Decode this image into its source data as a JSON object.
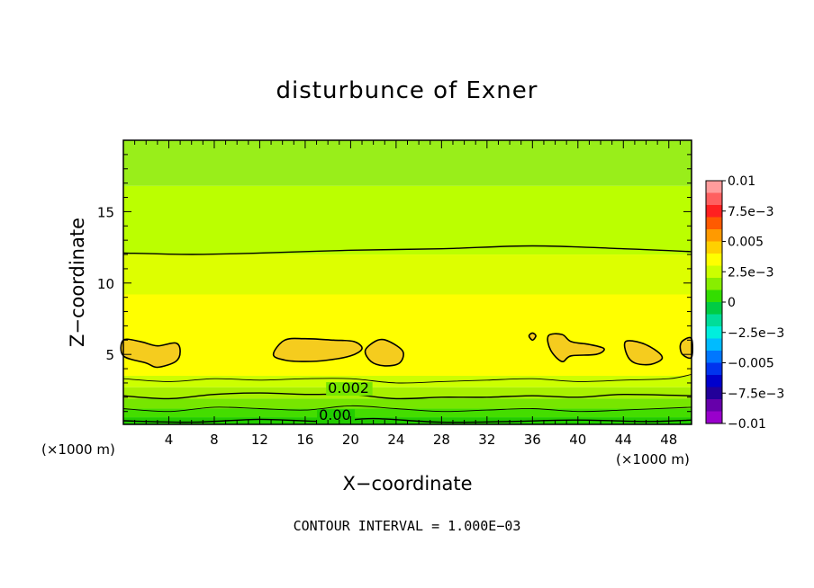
{
  "chart_data": {
    "type": "heatmap",
    "title": "disturbunce of Exner",
    "xlabel": "X−coordinate",
    "ylabel": "Z−coordinate",
    "x_unit": "(×1000 m)",
    "y_unit": "(×1000 m)",
    "xlim": [
      0,
      50
    ],
    "ylim": [
      0.1,
      20
    ],
    "x_ticks": [
      4,
      8,
      12,
      16,
      20,
      24,
      28,
      32,
      36,
      40,
      44,
      48
    ],
    "y_ticks": [
      5,
      10,
      15
    ],
    "footer": "CONTOUR INTERVAL = 1.000E−03",
    "contour_interval": 0.001,
    "bands": [
      {
        "z_top": 20.0,
        "z_bottom": 16.8,
        "value": 0.0018,
        "color": "#99ee1a"
      },
      {
        "z_top": 16.8,
        "z_bottom": 12.0,
        "value": 0.0025,
        "color": "#bbff00"
      },
      {
        "z_top": 12.0,
        "z_bottom": 9.2,
        "value": 0.0032,
        "color": "#ddff00"
      },
      {
        "z_top": 9.2,
        "z_bottom": 3.5,
        "value": 0.0038,
        "color": "#ffff00"
      },
      {
        "z_top": 3.5,
        "z_bottom": 2.7,
        "value": 0.0025,
        "color": "#ccff00"
      },
      {
        "z_top": 2.7,
        "z_bottom": 1.9,
        "value": 0.0021,
        "color": "#a8f000"
      },
      {
        "z_top": 1.9,
        "z_bottom": 1.2,
        "value": 0.0015,
        "color": "#77e600"
      },
      {
        "z_top": 1.2,
        "z_bottom": 0.6,
        "value": 0.0008,
        "color": "#44dd00"
      },
      {
        "z_top": 0.6,
        "z_bottom": 0.1,
        "value": 0.0002,
        "color": "#22cc00"
      }
    ],
    "contours": [
      {
        "value": 0.004,
        "points": [
          [
            0,
            12.1
          ],
          [
            6,
            12.0
          ],
          [
            12,
            12.1
          ],
          [
            20,
            12.3
          ],
          [
            28,
            12.4
          ],
          [
            36,
            12.6
          ],
          [
            44,
            12.4
          ],
          [
            50,
            12.2
          ]
        ]
      },
      {
        "value": 0.003,
        "points": [
          [
            0,
            3.3
          ],
          [
            4,
            3.1
          ],
          [
            8,
            3.3
          ],
          [
            12,
            3.2
          ],
          [
            16,
            3.3
          ],
          [
            20,
            3.3
          ],
          [
            24,
            3.0
          ],
          [
            28,
            3.1
          ],
          [
            32,
            3.2
          ],
          [
            36,
            3.3
          ],
          [
            40,
            3.1
          ],
          [
            44,
            3.2
          ],
          [
            48,
            3.3
          ],
          [
            50,
            3.6
          ]
        ]
      },
      {
        "value": 0.002,
        "points": [
          [
            0,
            2.1
          ],
          [
            4,
            1.9
          ],
          [
            8,
            2.2
          ],
          [
            12,
            2.3
          ],
          [
            16,
            2.2
          ],
          [
            20,
            2.2
          ],
          [
            24,
            1.9
          ],
          [
            28,
            2.0
          ],
          [
            32,
            2.0
          ],
          [
            36,
            2.1
          ],
          [
            40,
            2.0
          ],
          [
            44,
            2.2
          ],
          [
            50,
            2.1
          ]
        ],
        "label": "0.002",
        "label_at": [
          18,
          2.3
        ]
      },
      {
        "value": 0.001,
        "points": [
          [
            0,
            1.2
          ],
          [
            4,
            1.0
          ],
          [
            8,
            1.3
          ],
          [
            12,
            1.2
          ],
          [
            16,
            1.1
          ],
          [
            20,
            1.4
          ],
          [
            24,
            1.2
          ],
          [
            28,
            1.0
          ],
          [
            32,
            1.1
          ],
          [
            36,
            1.2
          ],
          [
            40,
            1.0
          ],
          [
            44,
            1.1
          ],
          [
            50,
            1.3
          ]
        ]
      },
      {
        "value": 0.0,
        "points": [
          [
            0,
            0.35
          ],
          [
            6,
            0.25
          ],
          [
            12,
            0.45
          ],
          [
            18,
            0.3
          ],
          [
            22,
            0.5
          ],
          [
            28,
            0.25
          ],
          [
            34,
            0.3
          ],
          [
            40,
            0.4
          ],
          [
            46,
            0.3
          ],
          [
            50,
            0.4
          ]
        ],
        "label": "0.00",
        "label_at": [
          17.2,
          0.4
        ]
      }
    ],
    "maxima_blobs": [
      {
        "value": 0.005,
        "points": [
          [
            0,
            6.0
          ],
          [
            1.5,
            5.9
          ],
          [
            3,
            5.6
          ],
          [
            4.6,
            5.8
          ],
          [
            5,
            5.2
          ],
          [
            4.6,
            4.5
          ],
          [
            3,
            4.1
          ],
          [
            2,
            4.4
          ],
          [
            0,
            4.9
          ]
        ]
      },
      {
        "value": 0.005,
        "points": [
          [
            13.2,
            5.0
          ],
          [
            14.2,
            6.0
          ],
          [
            16,
            6.1
          ],
          [
            18.5,
            6.0
          ],
          [
            20.3,
            5.9
          ],
          [
            21,
            5.4
          ],
          [
            20,
            4.9
          ],
          [
            18,
            4.6
          ],
          [
            16,
            4.5
          ],
          [
            14.2,
            4.6
          ]
        ]
      },
      {
        "value": 0.005,
        "points": [
          [
            21.3,
            5.3
          ],
          [
            22.4,
            6.0
          ],
          [
            23.4,
            5.9
          ],
          [
            24.6,
            5.2
          ],
          [
            24.3,
            4.4
          ],
          [
            23,
            4.2
          ],
          [
            21.8,
            4.5
          ]
        ]
      },
      {
        "value": 0.005,
        "points": [
          [
            37.4,
            6.3
          ],
          [
            38.6,
            6.4
          ],
          [
            39.4,
            5.9
          ],
          [
            41,
            5.7
          ],
          [
            42.3,
            5.4
          ],
          [
            41.6,
            5.0
          ],
          [
            39.4,
            4.9
          ],
          [
            38.6,
            4.5
          ],
          [
            37.6,
            5.3
          ]
        ]
      },
      {
        "value": 0.005,
        "points": [
          [
            35.7,
            6.3
          ],
          [
            36,
            6.5
          ],
          [
            36.3,
            6.3
          ],
          [
            36,
            6.0
          ]
        ]
      },
      {
        "value": 0.005,
        "points": [
          [
            44.2,
            5.9
          ],
          [
            45.6,
            5.8
          ],
          [
            47,
            5.2
          ],
          [
            47.4,
            4.7
          ],
          [
            46.4,
            4.3
          ],
          [
            45,
            4.4
          ],
          [
            44.3,
            5.0
          ]
        ]
      },
      {
        "value": 0.005,
        "points": [
          [
            49.3,
            6.0
          ],
          [
            50,
            6.1
          ],
          [
            50,
            4.8
          ],
          [
            49.2,
            5.0
          ],
          [
            49,
            5.6
          ]
        ]
      }
    ],
    "colorbar": {
      "labels": [
        "0.01",
        "7.5e−3",
        "0.005",
        "2.5e−3",
        "0",
        "−2.5e−3",
        "−0.005",
        "−7.5e−3",
        "−0.01"
      ],
      "colors": [
        "#ff9c9c",
        "#ff6060",
        "#ff2020",
        "#ff5a00",
        "#ff9a00",
        "#ffd000",
        "#ffff00",
        "#ccff00",
        "#88ee00",
        "#33dd00",
        "#00cc44",
        "#00dd99",
        "#00eedd",
        "#00bbff",
        "#0077ff",
        "#0033ee",
        "#0000cc",
        "#220099",
        "#6600aa",
        "#9900cc"
      ],
      "range": [
        -0.01,
        0.01
      ]
    }
  }
}
